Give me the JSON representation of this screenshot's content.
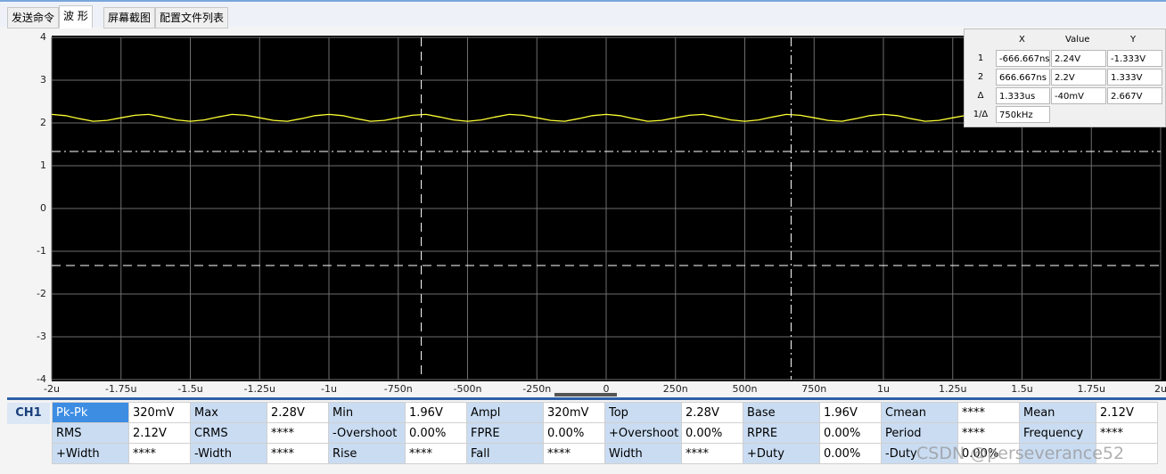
{
  "tabs": [
    "发送命令",
    "波 形",
    "屏幕截图",
    "配置文件列表"
  ],
  "active_tab": 1,
  "chart_data": {
    "type": "line",
    "xlim": [
      -2,
      2
    ],
    "ylim": [
      -4,
      4
    ],
    "yticks": [
      4,
      3,
      2,
      1,
      0,
      -1,
      -2,
      -3,
      -4
    ],
    "xticks": [
      {
        "value": -2,
        "label": "-2u"
      },
      {
        "value": -1.75,
        "label": "-1.75u"
      },
      {
        "value": -1.5,
        "label": "-1.5u"
      },
      {
        "value": -1.25,
        "label": "-1.25u"
      },
      {
        "value": -1,
        "label": "-1u"
      },
      {
        "value": -0.75,
        "label": "-750n"
      },
      {
        "value": -0.5,
        "label": "-500n"
      },
      {
        "value": -0.25,
        "label": "-250n"
      },
      0,
      {
        "value": 0.25,
        "label": "250n"
      },
      {
        "value": 0.5,
        "label": "500n"
      },
      {
        "value": 0.75,
        "label": "750n"
      },
      {
        "value": 1,
        "label": "1u"
      },
      {
        "value": 1.25,
        "label": "1.25u"
      },
      {
        "value": 1.5,
        "label": "1.5u"
      },
      {
        "value": 1.75,
        "label": "1.75u"
      },
      {
        "value": 2,
        "label": "2u"
      }
    ],
    "grid": true,
    "x": [
      -2,
      -1.95,
      -1.9,
      -1.85,
      -1.8,
      -1.75,
      -1.7,
      -1.65,
      -1.6,
      -1.55,
      -1.5,
      -1.45,
      -1.4,
      -1.35,
      -1.3,
      -1.25,
      -1.2,
      -1.15,
      -1.1,
      -1.05,
      -1,
      -0.95,
      -0.9,
      -0.85,
      -0.8,
      -0.75,
      -0.7,
      -0.65,
      -0.6,
      -0.55,
      -0.5,
      -0.45,
      -0.4,
      -0.35,
      -0.3,
      -0.25,
      -0.2,
      -0.15,
      -0.1,
      -0.05,
      0,
      0.05,
      0.1,
      0.15,
      0.2,
      0.25,
      0.3,
      0.35,
      0.4,
      0.45,
      0.5,
      0.55,
      0.6,
      0.65,
      0.7,
      0.75,
      0.8,
      0.85,
      0.9,
      0.95,
      1,
      1.05,
      1.1,
      1.15,
      1.2,
      1.25,
      1.3,
      1.35,
      1.4,
      1.45,
      1.5,
      1.55,
      1.6,
      1.65,
      1.7,
      1.75,
      1.8,
      1.85,
      1.9,
      1.95,
      2
    ],
    "series": [
      {
        "color": "#ffff33",
        "values": [
          2.2,
          2.17,
          2.1,
          2.04,
          2.06,
          2.12,
          2.18,
          2.2,
          2.14,
          2.07,
          2.04,
          2.07,
          2.14,
          2.2,
          2.18,
          2.12,
          2.06,
          2.04,
          2.1,
          2.17,
          2.2,
          2.17,
          2.1,
          2.04,
          2.06,
          2.12,
          2.18,
          2.2,
          2.14,
          2.07,
          2.04,
          2.07,
          2.14,
          2.2,
          2.18,
          2.12,
          2.06,
          2.04,
          2.1,
          2.17,
          2.2,
          2.17,
          2.1,
          2.04,
          2.06,
          2.12,
          2.18,
          2.2,
          2.14,
          2.07,
          2.04,
          2.07,
          2.14,
          2.2,
          2.18,
          2.12,
          2.06,
          2.04,
          2.1,
          2.17,
          2.2,
          2.17,
          2.1,
          2.04,
          2.06,
          2.12,
          2.18,
          2.2,
          2.14,
          2.07,
          2.04,
          2.07,
          2.14,
          2.2,
          2.18,
          2.12,
          2.06,
          2.04,
          2.1,
          2.17,
          2.2
        ]
      }
    ],
    "cursors": {
      "x": [
        -0.667,
        0.667
      ],
      "y": [
        -1.333,
        1.333
      ]
    }
  },
  "cursor_panel": {
    "x_label": "X",
    "value_label": "Value",
    "y_label": "Y",
    "rows": [
      [
        "1",
        "-666.667ns",
        "2.24V",
        "-1.333V"
      ],
      [
        "2",
        "666.667ns",
        "2.2V",
        "1.333V"
      ],
      [
        "Δ",
        "1.333us",
        "-40mV",
        "2.667V"
      ],
      [
        "1/Δ",
        "750kHz"
      ]
    ]
  },
  "channel": "CH1",
  "measurements": [
    [
      [
        "Pk-Pk",
        "320mV"
      ],
      [
        "Max",
        "2.28V"
      ],
      [
        "Min",
        "1.96V"
      ],
      [
        "Ampl",
        "320mV"
      ],
      [
        "Top",
        "2.28V"
      ],
      [
        "Base",
        "1.96V"
      ],
      [
        "Cmean",
        "****"
      ],
      [
        "Mean",
        "2.12V"
      ]
    ],
    [
      [
        "RMS",
        "2.12V"
      ],
      [
        "CRMS",
        "****"
      ],
      [
        "-Overshoot",
        "0.00%"
      ],
      [
        "FPRE",
        "0.00%"
      ],
      [
        "+Overshoot",
        "0.00%"
      ],
      [
        "RPRE",
        "0.00%"
      ],
      [
        "Period",
        "****"
      ],
      [
        "Frequency",
        "****"
      ]
    ],
    [
      [
        "+Width",
        "****"
      ],
      [
        "-Width",
        "****"
      ],
      [
        "Rise",
        "****"
      ],
      [
        "Fall",
        "****"
      ],
      [
        "Width",
        "****"
      ],
      [
        "+Duty",
        "0.00%"
      ],
      [
        "-Duty",
        "0.00%"
      ]
    ]
  ],
  "watermark": "CSDN @perseverance52"
}
